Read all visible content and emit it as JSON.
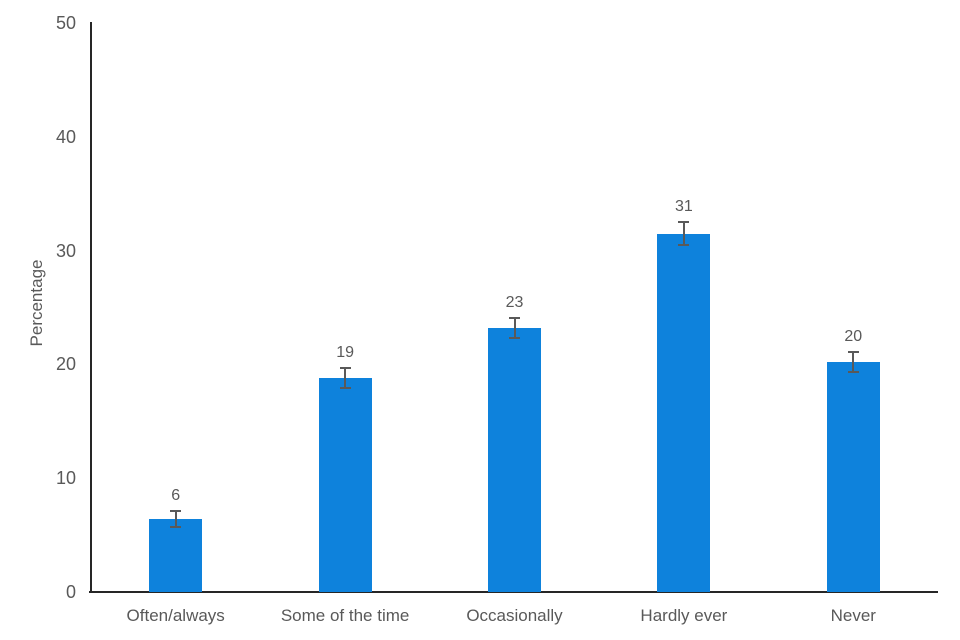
{
  "chart_data": {
    "type": "bar",
    "title": "",
    "xlabel": "",
    "ylabel": "Percentage",
    "categories": [
      "Often/always",
      "Some of the time",
      "Occasionally",
      "Hardly ever",
      "Never"
    ],
    "values": [
      6.4,
      18.8,
      23.2,
      31.5,
      20.2
    ],
    "data_labels": [
      "6",
      "19",
      "23",
      "31",
      "20"
    ],
    "error_bars": [
      0.7,
      0.9,
      0.9,
      1.0,
      0.9
    ],
    "yticks": [
      "0",
      "10",
      "20",
      "30",
      "40",
      "50"
    ],
    "ylim": [
      0,
      50
    ],
    "grid": false,
    "legend": null,
    "bar_color": "#0E82DC",
    "error_color": "#595959",
    "axis_color": "#262626",
    "text_color": "#595959"
  }
}
